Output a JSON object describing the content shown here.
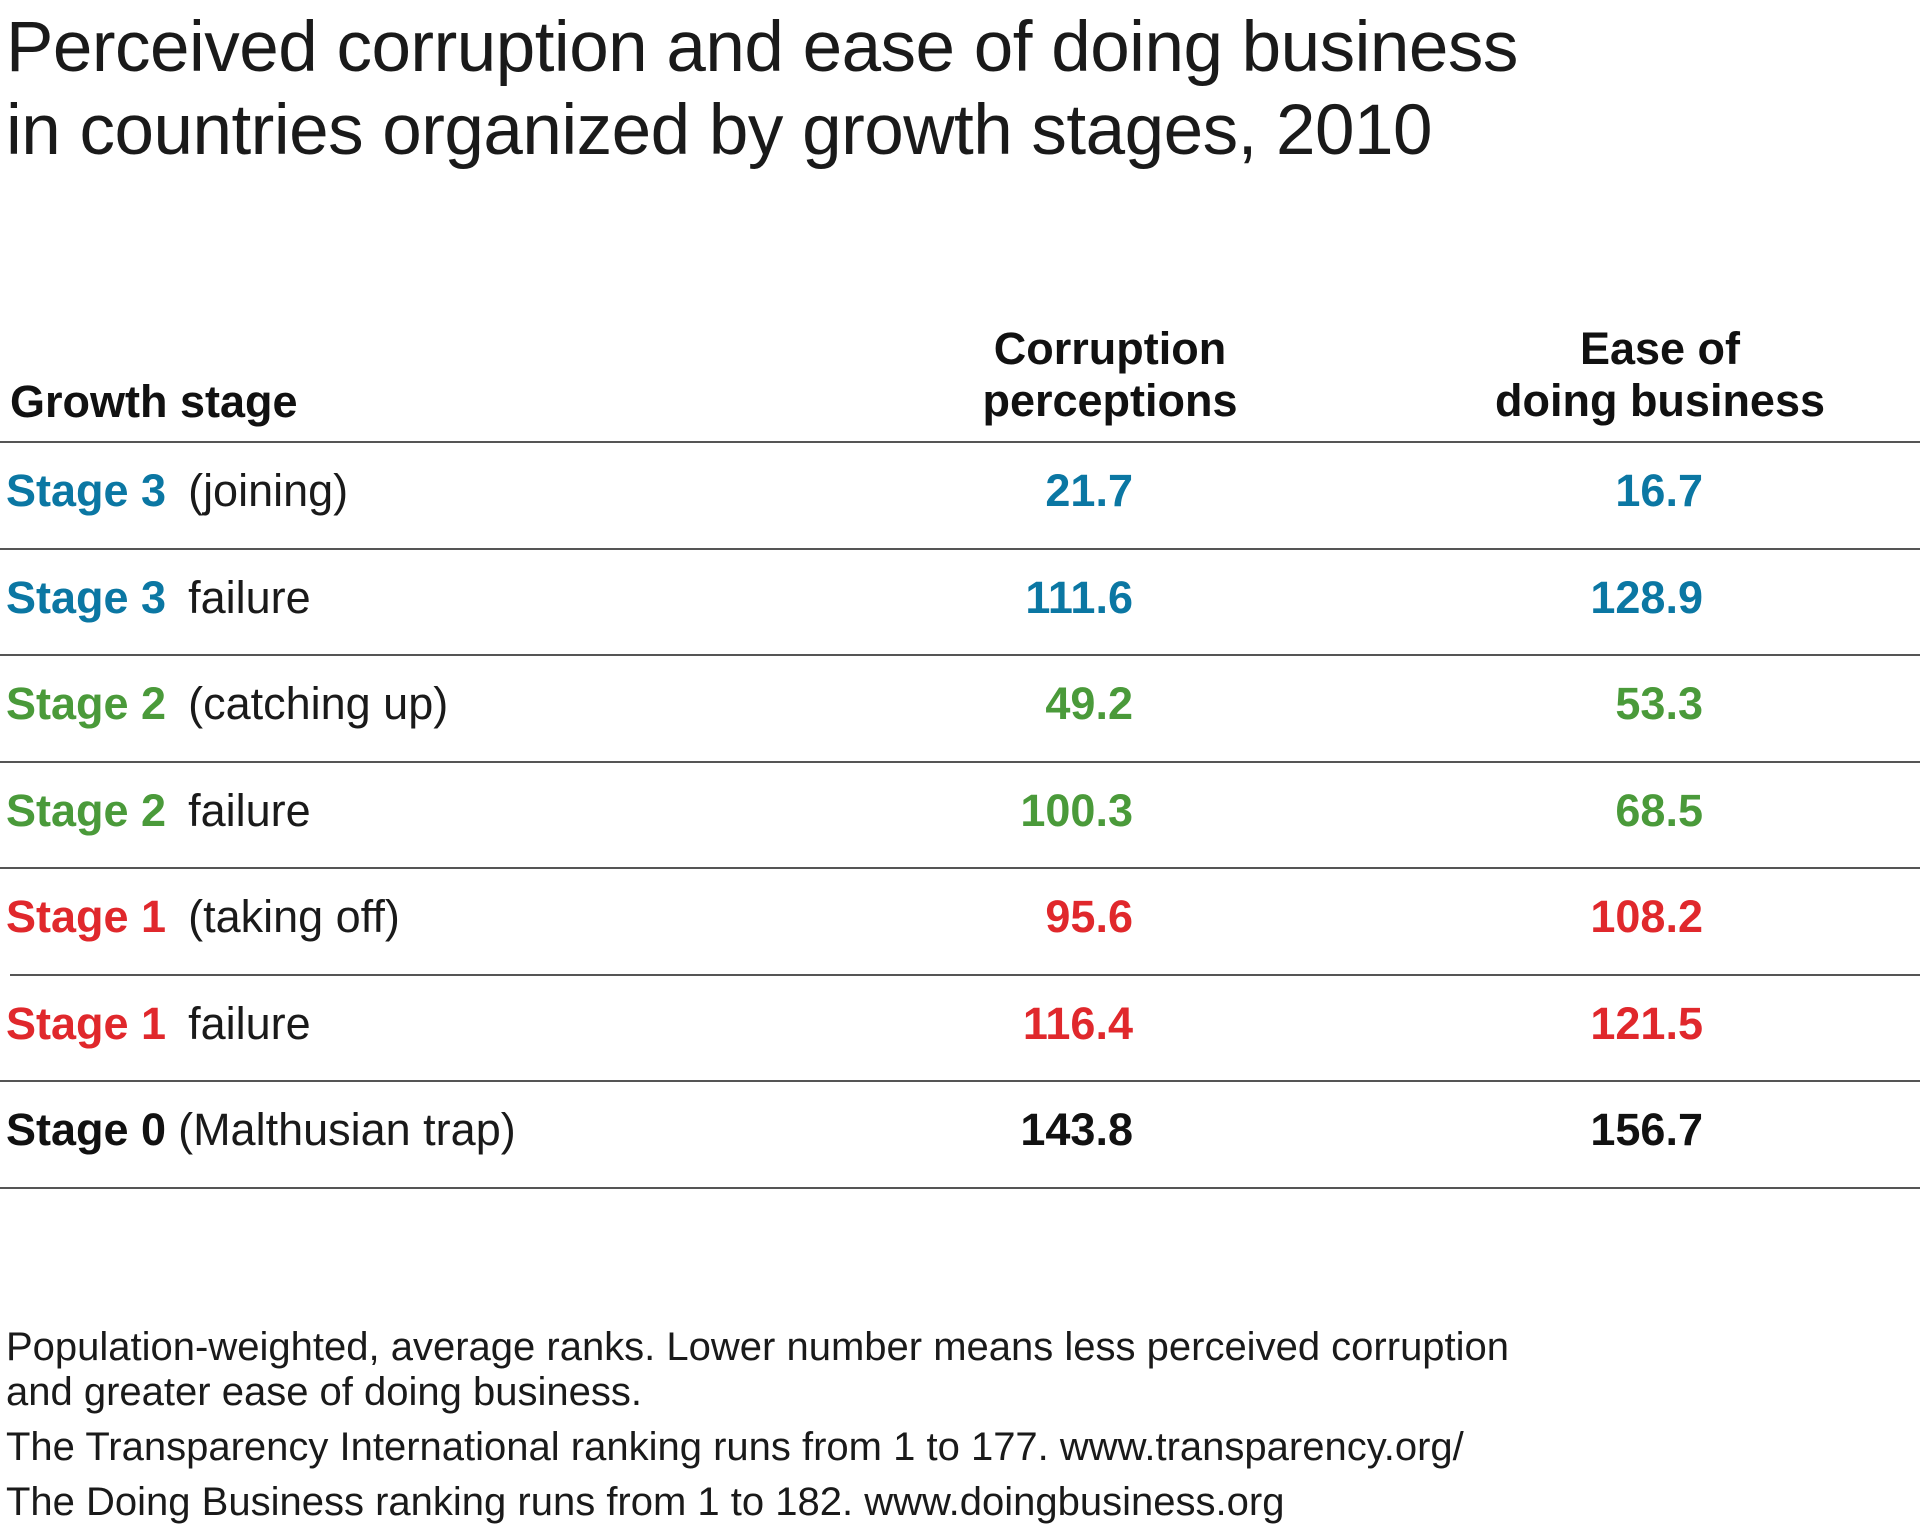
{
  "title_lines": [
    "Perceived corruption and ease of doing business",
    "in countries organized by growth stages, 2010"
  ],
  "colors": {
    "stage3": "#0b77a3",
    "stage2": "#4a9a3a",
    "stage1": "#e0282c",
    "stage0": "#111111"
  },
  "chart_data": {
    "type": "table",
    "title": "Perceived corruption and ease of doing business in countries organized by growth stages, 2010",
    "columns": {
      "stage": "Growth stage",
      "corruption": [
        "Corruption",
        "perceptions"
      ],
      "business": [
        "Ease of",
        "doing business"
      ]
    },
    "rows": [
      {
        "stage": "Stage 3",
        "desc": "(joining)",
        "corruption": "21.7",
        "business": "16.7",
        "color": "#0b77a3"
      },
      {
        "stage": "Stage 3",
        "desc": "failure",
        "corruption": "111.6",
        "business": "128.9",
        "color": "#0b77a3"
      },
      {
        "stage": "Stage 2",
        "desc": "(catching up)",
        "corruption": "49.2",
        "business": "53.3",
        "color": "#4a9a3a"
      },
      {
        "stage": "Stage 2",
        "desc": "failure",
        "corruption": "100.3",
        "business": "68.5",
        "color": "#4a9a3a"
      },
      {
        "stage": "Stage 1",
        "desc": "(taking off)",
        "corruption": "95.6",
        "business": "108.2",
        "color": "#e0282c"
      },
      {
        "stage": "Stage 1",
        "desc": "failure",
        "corruption": "116.4",
        "business": "121.5",
        "color": "#e0282c"
      },
      {
        "stage": "Stage 0",
        "desc": "(Malthusian trap)",
        "corruption": "143.8",
        "business": "156.7",
        "color": "#111111"
      }
    ]
  },
  "notes": [
    "Population-weighted, average ranks. Lower number means less perceived corruption",
    "and greater ease of doing business.",
    "The Transparency International ranking runs from 1 to 177. www.transparency.org/",
    "The Doing Business ranking runs from 1 to 182. www.doingbusiness.org"
  ]
}
